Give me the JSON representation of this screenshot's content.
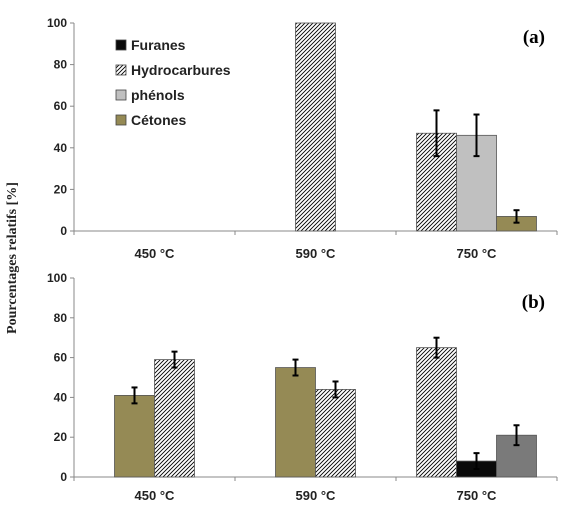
{
  "chart_data": {
    "type": "bar",
    "ylabel": "Pourcentages relatifs [%]",
    "ylim": [
      0,
      100
    ],
    "yticks": [
      0,
      20,
      40,
      60,
      80,
      100
    ],
    "categories": [
      "450 °C",
      "590 °C",
      "750 °C"
    ],
    "legend_position": "top-left of panel (a)",
    "legend": [
      {
        "key": "furanes",
        "label": "Furanes",
        "color": "#0a0a0a",
        "pattern": "solid"
      },
      {
        "key": "hydrocarbures",
        "label": "Hydrocarbures",
        "color": "#ffffff",
        "pattern": "diagonal-hatch"
      },
      {
        "key": "phenols",
        "label": "phénols",
        "color": "#c0c0c0",
        "pattern": "solid"
      },
      {
        "key": "cetones",
        "label": "Cétones",
        "color": "#958a55",
        "pattern": "solid"
      }
    ],
    "panels": [
      {
        "label": "(a)",
        "groups": [
          {
            "category": "450 °C",
            "bars": []
          },
          {
            "category": "590 °C",
            "bars": [
              {
                "series": "hydrocarbures",
                "value": 100
              }
            ]
          },
          {
            "category": "750 °C",
            "bars": [
              {
                "series": "hydrocarbures",
                "value": 47,
                "error": 11
              },
              {
                "series": "phenols",
                "value": 46,
                "error": 10
              },
              {
                "series": "cetones",
                "value": 7,
                "error": 3
              }
            ]
          }
        ]
      },
      {
        "label": "(b)",
        "groups": [
          {
            "category": "450 °C",
            "bars": [
              {
                "series": "cetones",
                "value": 41,
                "error": 4
              },
              {
                "series": "hydrocarbures",
                "value": 59,
                "error": 4
              }
            ]
          },
          {
            "category": "590 °C",
            "bars": [
              {
                "series": "cetones",
                "value": 55,
                "error": 4
              },
              {
                "series": "hydrocarbures",
                "value": 44,
                "error": 4
              }
            ]
          },
          {
            "category": "750 °C",
            "bars": [
              {
                "series": "hydrocarbures",
                "value": 65,
                "error": 5
              },
              {
                "series": "furanes",
                "value": 8,
                "error": 4
              },
              {
                "series": "grey",
                "value": 21,
                "error": 5,
                "color": "#7a7a7a"
              }
            ]
          }
        ]
      }
    ]
  }
}
